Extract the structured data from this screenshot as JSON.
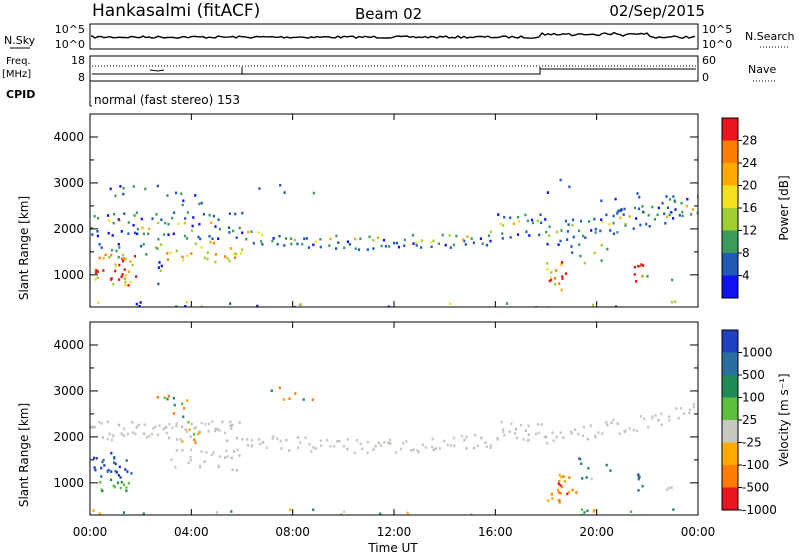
{
  "header": {
    "station": "Hankasalmi (fitACF)",
    "beam": "Beam 02",
    "date": "02/Sep/2015"
  },
  "noise_panel": {
    "left_label": "N.Sky",
    "right_label": "N.Search",
    "left_ticks": [
      "10^5",
      "10^0"
    ],
    "right_ticks": [
      "10^5",
      "10^0"
    ]
  },
  "freq_panel": {
    "label_top": "Freq.",
    "label_unit": "[MHz]",
    "cpid_label": "CPID",
    "left_ticks": [
      "18",
      "8"
    ],
    "right_ticks": [
      "60",
      "0"
    ],
    "right_label": "Nave",
    "cpid_text": "normal (fast stereo) 153"
  },
  "axes": {
    "ylabel": "Slant Range [km]",
    "xlabel": "Time UT",
    "x_ticks": [
      "00:00",
      "04:00",
      "08:00",
      "12:00",
      "16:00",
      "20:00",
      "00:00"
    ],
    "y_ticks": [
      "4000",
      "3000",
      "2000",
      "1000"
    ]
  },
  "power_colorbar": {
    "label": "Power [dB]",
    "ticks": [
      "28",
      "24",
      "20",
      "16",
      "12",
      "8",
      "4"
    ],
    "colors": [
      "#e8141e",
      "#ff7d00",
      "#ffaa00",
      "#f2e11e",
      "#9dce32",
      "#3a9b5c",
      "#1f5ab4",
      "#1010f0"
    ]
  },
  "velocity_colorbar": {
    "label": "Velocity [m s⁻¹]",
    "ticks": [
      "1000",
      "500",
      "100",
      "25",
      "-25",
      "-100",
      "-500",
      "-1000"
    ],
    "colors": [
      "#2040c0",
      "#2a6ea0",
      "#1f8a55",
      "#5cc03a",
      "#c8c8c0",
      "#ffaa00",
      "#ff7d00",
      "#e8141e"
    ]
  },
  "chart_data": {
    "type": "heatmap",
    "panels": [
      {
        "name": "Power",
        "colorbar_range_db": [
          0,
          32
        ]
      },
      {
        "name": "Velocity",
        "colorbar_range": [
          -1000,
          1000
        ]
      }
    ],
    "x_range_hours": [
      0,
      24
    ],
    "y_range_km": [
      300,
      4500
    ],
    "bands_power": [
      {
        "t0": 0.0,
        "t1": 6.0,
        "r0": 1950,
        "r1": 2400,
        "level": "high"
      },
      {
        "t0": 6.0,
        "t1": 18.0,
        "r0": 1750,
        "r1": 2150,
        "level": "high"
      },
      {
        "t0": 18.0,
        "t1": 24.0,
        "r0": 1600,
        "r1": 2700,
        "level": "mid"
      },
      {
        "t0": 0.1,
        "t1": 1.8,
        "r0": 800,
        "r1": 1500,
        "level": "very-high"
      },
      {
        "t0": 18.0,
        "t1": 18.8,
        "r0": 700,
        "r1": 1300,
        "level": "very-high"
      },
      {
        "t0": 21.3,
        "t1": 21.8,
        "r0": 850,
        "r1": 1300,
        "level": "very-high"
      }
    ]
  }
}
